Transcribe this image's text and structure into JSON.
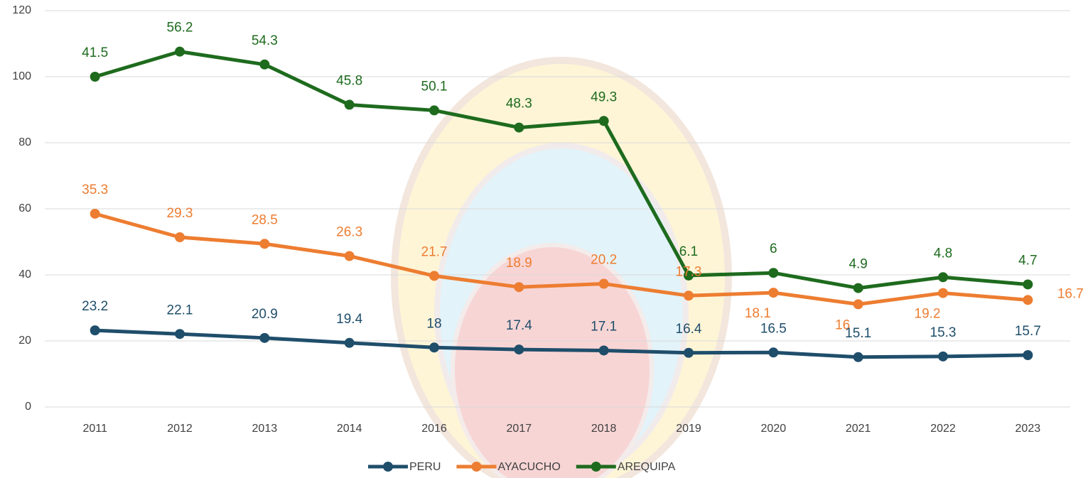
{
  "chart_data": {
    "type": "stacked-line",
    "categories": [
      "2011",
      "2012",
      "2013",
      "2014",
      "2016",
      "2017",
      "2018",
      "2019",
      "2020",
      "2021",
      "2022",
      "2023"
    ],
    "series": [
      {
        "name": "PERU",
        "color": "#1f4e6b",
        "values": [
          23.2,
          22.1,
          20.9,
          19.4,
          18,
          17.4,
          17.1,
          16.4,
          16.5,
          15.1,
          15.3,
          15.7
        ]
      },
      {
        "name": "AYACUCHO",
        "color": "#ed7d31",
        "values": [
          35.3,
          29.3,
          28.5,
          26.3,
          21.7,
          18.9,
          20.2,
          17.3,
          18.1,
          16,
          19.2,
          16.7
        ]
      },
      {
        "name": "AREQUIPA",
        "color": "#1e6b1e",
        "values": [
          41.5,
          56.2,
          54.3,
          45.8,
          50.1,
          48.3,
          49.3,
          6.1,
          6,
          4.9,
          4.8,
          4.7
        ]
      }
    ],
    "ylim": [
      0,
      120
    ],
    "yticks": [
      0,
      20,
      40,
      60,
      80,
      100,
      120
    ],
    "grid": true,
    "legend": "bottom"
  }
}
